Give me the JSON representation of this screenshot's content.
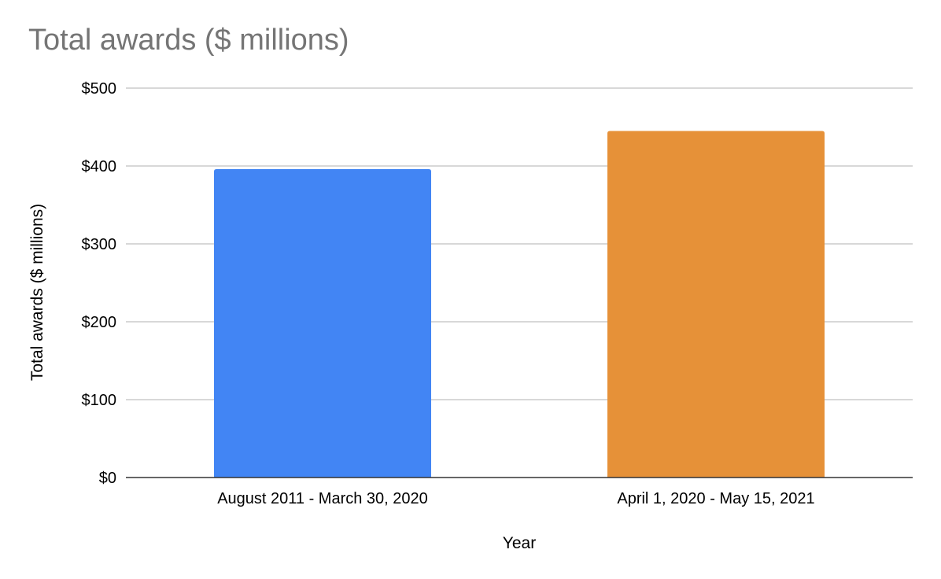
{
  "chart_data": {
    "type": "bar",
    "title": "Total awards ($ millions)",
    "xlabel": "Year",
    "ylabel": "Total awards ($ millions)",
    "categories": [
      "August 2011 - March 30, 2020",
      "April 1, 2020 - May 15, 2021"
    ],
    "values": [
      396,
      445
    ],
    "colors": [
      "#4285f4",
      "#e69138"
    ],
    "ylim": [
      0,
      500
    ],
    "yticks": [
      0,
      100,
      200,
      300,
      400,
      500
    ],
    "ytick_labels": [
      "$0",
      "$100",
      "$200",
      "$300",
      "$400",
      "$500"
    ],
    "grid": true,
    "legend": "none"
  }
}
